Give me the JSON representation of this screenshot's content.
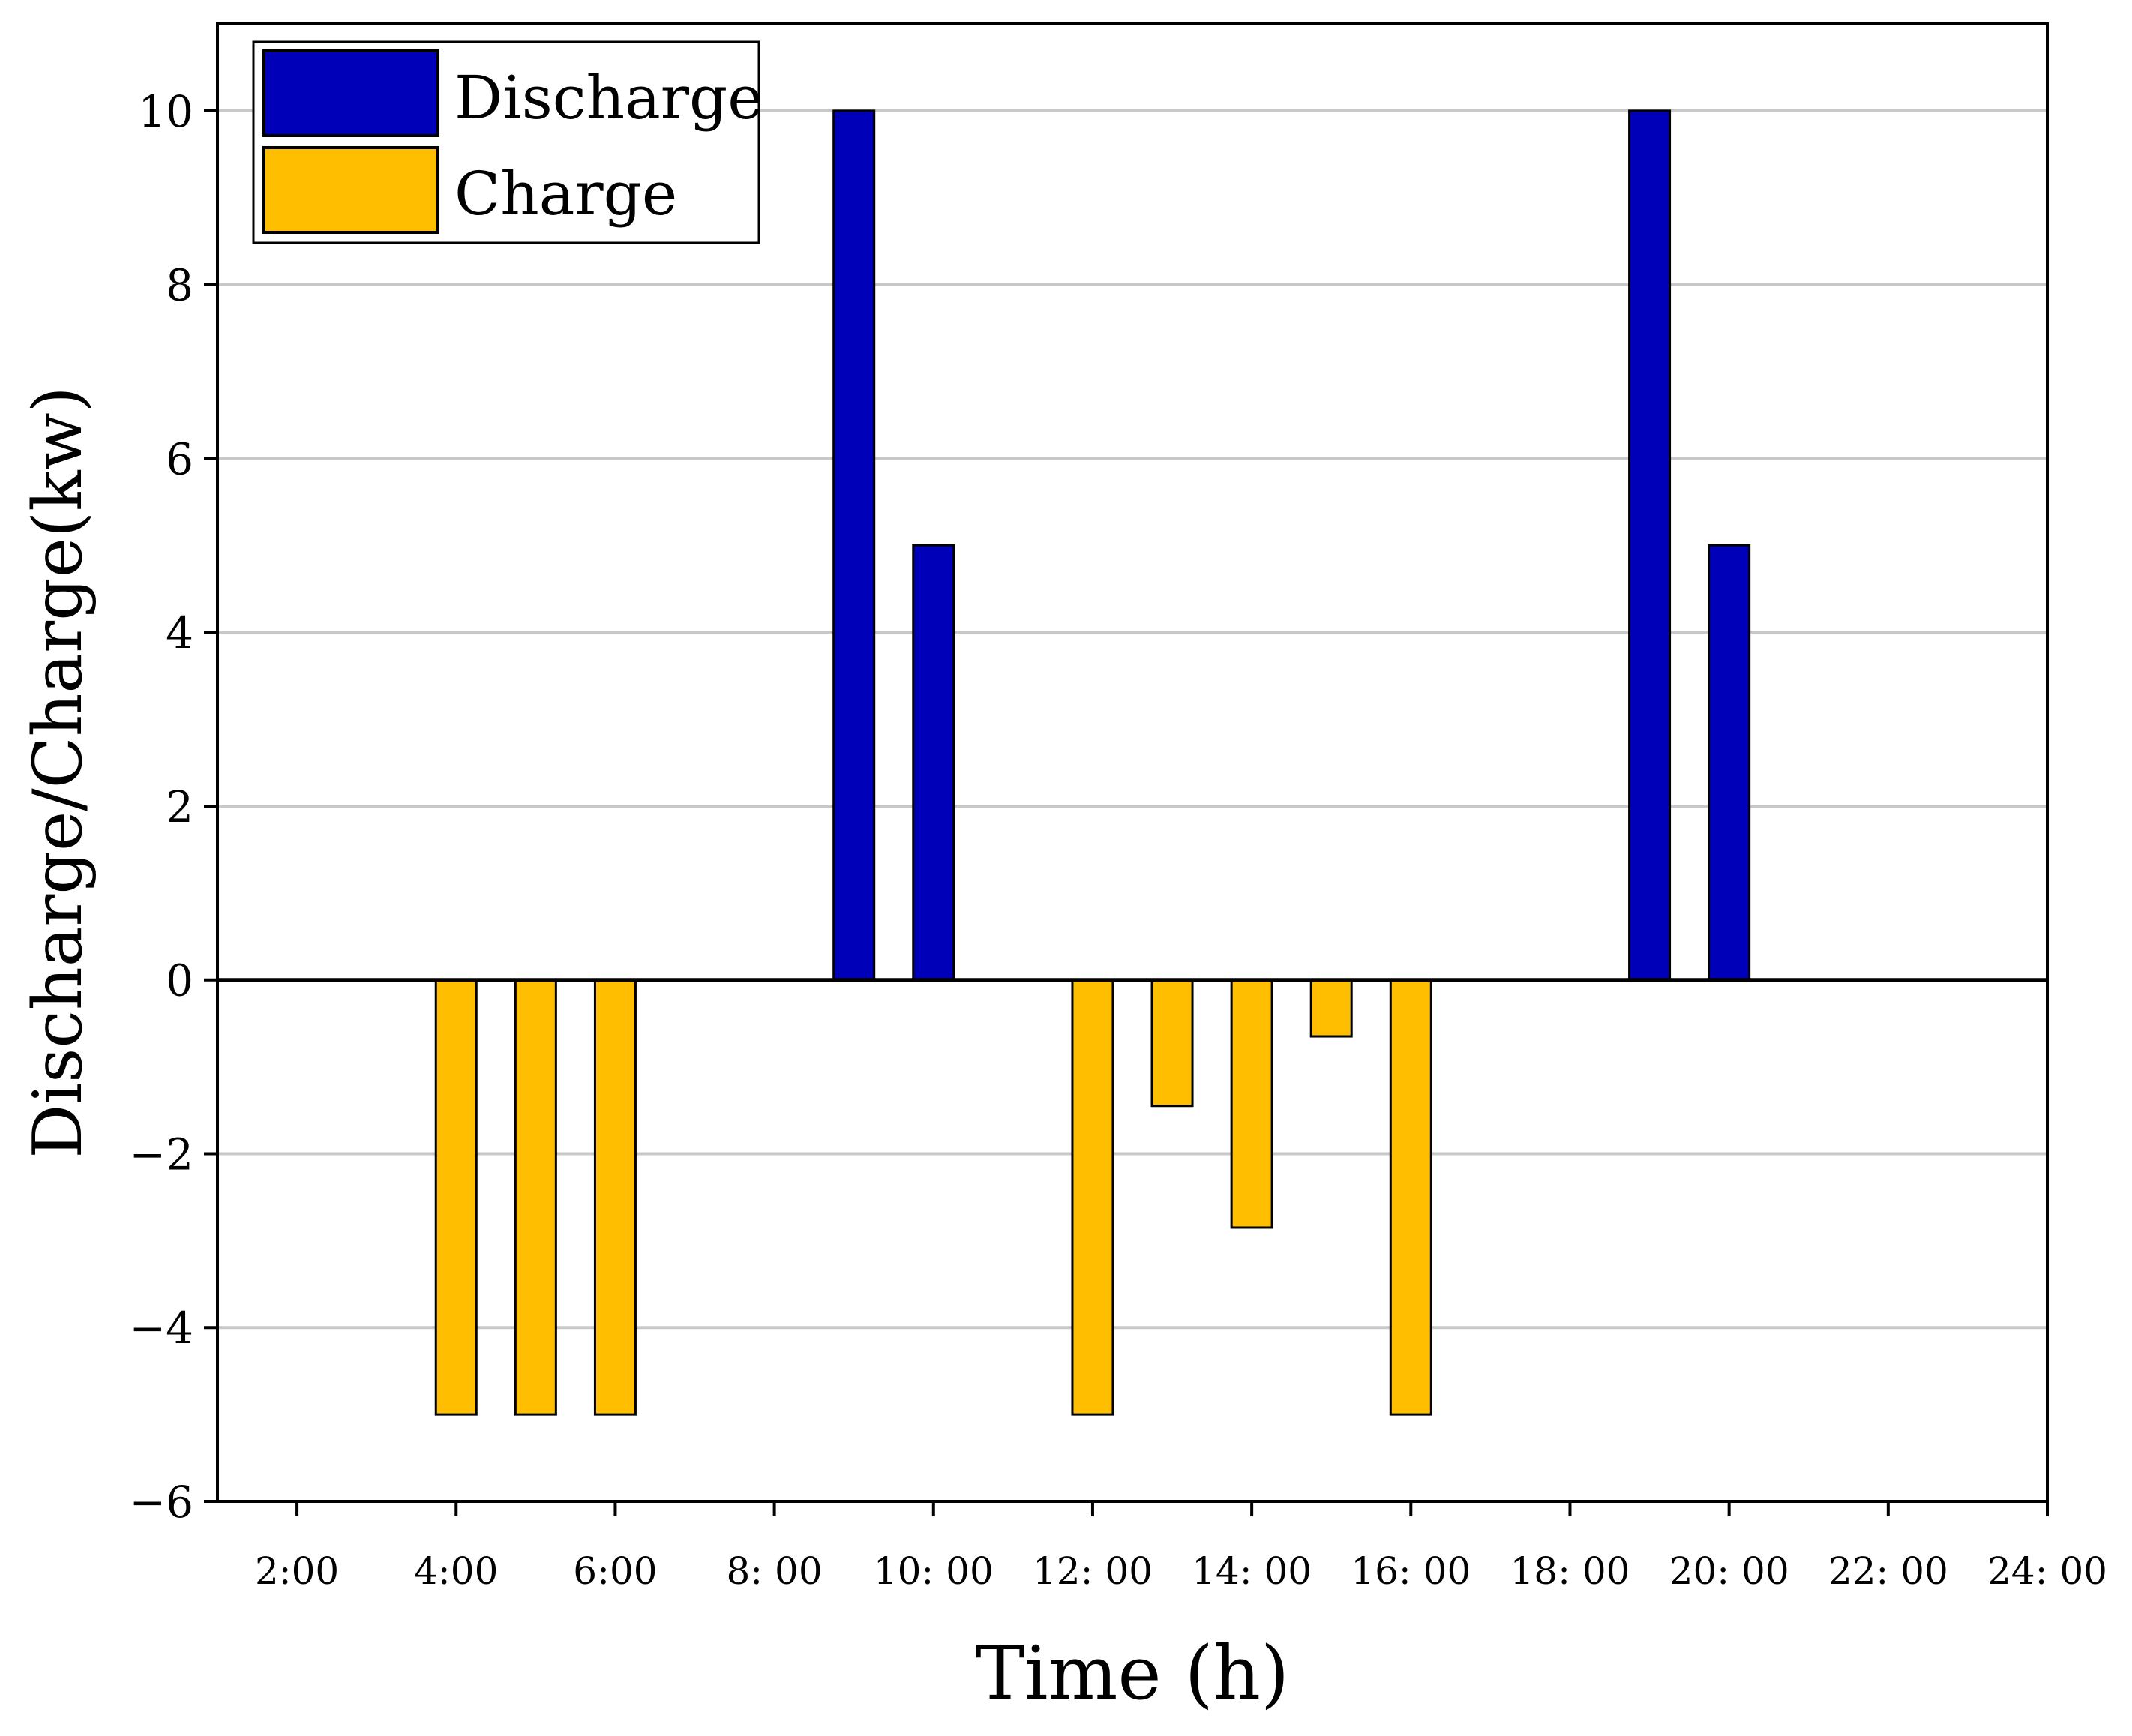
{
  "chart_data": {
    "type": "bar",
    "title": "",
    "xlabel": "Time (h)",
    "ylabel": "Discharge/Charge(kw)",
    "ylim": [
      -6,
      11
    ],
    "yticks": [
      -6,
      -4,
      -2,
      0,
      2,
      4,
      6,
      8,
      10
    ],
    "ytick_labels": [
      "−6",
      "−4",
      "−2",
      "0",
      "2",
      "4",
      "6",
      "8",
      "10"
    ],
    "xlim": [
      1,
      24
    ],
    "xticks": [
      2,
      4,
      6,
      8,
      10,
      12,
      14,
      16,
      18,
      20,
      22,
      24
    ],
    "xtick_labels": [
      "2:00",
      "4:00",
      "6:00",
      "8: 00",
      "10: 00",
      "12: 00",
      "14: 00",
      "16: 00",
      "18: 00",
      "20: 00",
      "22: 00",
      "24: 00"
    ],
    "grid": true,
    "legend_position": "top-left",
    "series": [
      {
        "name": "Discharge",
        "color": "#0000b8",
        "x": [
          9,
          10,
          19,
          20
        ],
        "values": [
          10,
          5,
          10,
          5
        ]
      },
      {
        "name": "Charge",
        "color": "#ffbf00",
        "x": [
          4,
          5,
          6,
          12,
          13,
          14,
          15,
          16
        ],
        "values": [
          -5,
          -5,
          -5,
          -5,
          -1.45,
          -2.85,
          -0.65,
          -5
        ]
      }
    ]
  }
}
